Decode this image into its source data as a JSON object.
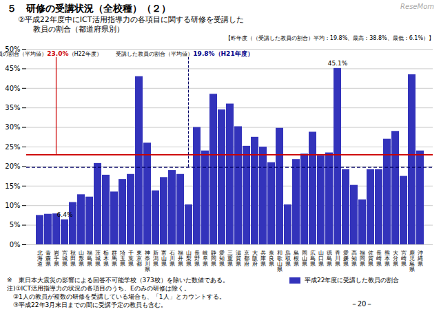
{
  "chart_data": {
    "type": "bar",
    "title": "５　研修の受講状況（全校種）（２）",
    "subtitle": [
      "②平成22年度中にICT活用指導力の各項目に関する研修を受講した",
      "　　教員の割合（都道府県別）"
    ],
    "watermark": "ReseMom",
    "note": "【昨年度（（受講した教員の割合）平均：19.8%、最高：38.8%、最低：6.1%）】",
    "categories": [
      "北\n海\n道",
      "青\n森\n県",
      "岩\n手\n県",
      "宮\n城\n県",
      "秋\n田\n県",
      "山\n形\n県",
      "福\n島\n県",
      "茨\n城\n県",
      "栃\n木\n県",
      "群\n馬\n県",
      "埼\n玉\n県",
      "千\n葉\n県",
      "東\n京\n都",
      "神\n奈\n川\n県",
      "新\n潟\n県",
      "富\n山\n県",
      "石\n川\n県",
      "福\n井\n県",
      "山\n梨\n県",
      "長\n野\n県",
      "岐\n阜\n県",
      "静\n岡\n県",
      "愛\n知\n県",
      "三\n重\n県",
      "滋\n賀\n県",
      "京\n都\n府",
      "大\n阪\n府",
      "兵\n庫\n県",
      "奈\n良\n県",
      "和\n歌\n山\n県",
      "鳥\n取\n県",
      "島\n根\n県",
      "岡\n山\n県",
      "広\n島\n県",
      "山\n口\n県",
      "徳\n島\n県",
      "香\n川\n県",
      "愛\n媛\n県",
      "高\n知\n県",
      "福\n岡\n県",
      "佐\n賀\n県",
      "長\n崎\n県",
      "熊\n本\n県",
      "大\n分\n県",
      "宮\n崎\n県",
      "鹿\n児\n島\n県",
      "沖\n縄\n県"
    ],
    "series": [
      {
        "name": "平成22年度に受講した教員の割合",
        "color": "#3333BB",
        "values": [
          7.5,
          7.8,
          7.9,
          6.4,
          10.8,
          12.8,
          12.2,
          20.8,
          17.8,
          13.5,
          16.7,
          18.0,
          43.0,
          26.0,
          13.8,
          17.2,
          19.0,
          18.0,
          10.2,
          30.0,
          24.0,
          38.5,
          34.5,
          36.0,
          30.2,
          25.2,
          27.5,
          25.0,
          21.0,
          29.8,
          10.2,
          21.8,
          23.2,
          28.8,
          22.8,
          23.5,
          45.1,
          19.2,
          15.2,
          11.5,
          19.2,
          19.2,
          27.0,
          29.0,
          17.5,
          43.5,
          24.0
        ]
      }
    ],
    "ylim": [
      0,
      50
    ],
    "yticks": [
      {
        "value": 0,
        "label": "0%"
      },
      {
        "value": 5,
        "label": "5%"
      },
      {
        "value": 10,
        "label": "10%"
      },
      {
        "value": 15,
        "label": "15%"
      },
      {
        "value": 20,
        "label": "20%"
      },
      {
        "value": 25,
        "label": "25%"
      },
      {
        "value": 30,
        "label": "30%"
      },
      {
        "value": 35,
        "label": "35%"
      },
      {
        "value": 40,
        "label": "40%"
      },
      {
        "value": 45,
        "label": "45%"
      },
      {
        "value": 50,
        "label": "50%"
      }
    ],
    "grid": true,
    "legend": "bottom",
    "reference_lines": [
      {
        "value": 23.0,
        "color": "#CC0000",
        "line_style": "solid",
        "label_parts": [
          {
            "text": "受講した教員の割合（平均値）"
          },
          {
            "text": "23.0%",
            "color": "#CC0000"
          },
          {
            "text": "（H22年度）"
          }
        ]
      },
      {
        "value": 19.8,
        "color": "#000066",
        "line_style": "dashed",
        "label_parts": [
          {
            "text": "受講した教員の割合（平均値）"
          },
          {
            "text": "19.8%（H21年度）",
            "color": "#000088"
          }
        ]
      }
    ],
    "annotations": [
      {
        "text": "6.4%",
        "category": "宮\n城\n県",
        "value": 6.4
      },
      {
        "text": "45.1%",
        "category": "香\n川\n県",
        "value": 45.1
      }
    ],
    "footnotes": [
      "※　東日本大震災の影響による回答不可能学校（373校）を除いた数値である。",
      "注)①ICT活用指導力の状況の各項目のうち、Eのみの研修は除く。",
      "　②1人の教員が複数の研修を受講している場合も、「1人」とカウントする。",
      "　③平成22年3月末日までの間に受講予定の教員も含む。"
    ],
    "page_number": "－20－"
  }
}
